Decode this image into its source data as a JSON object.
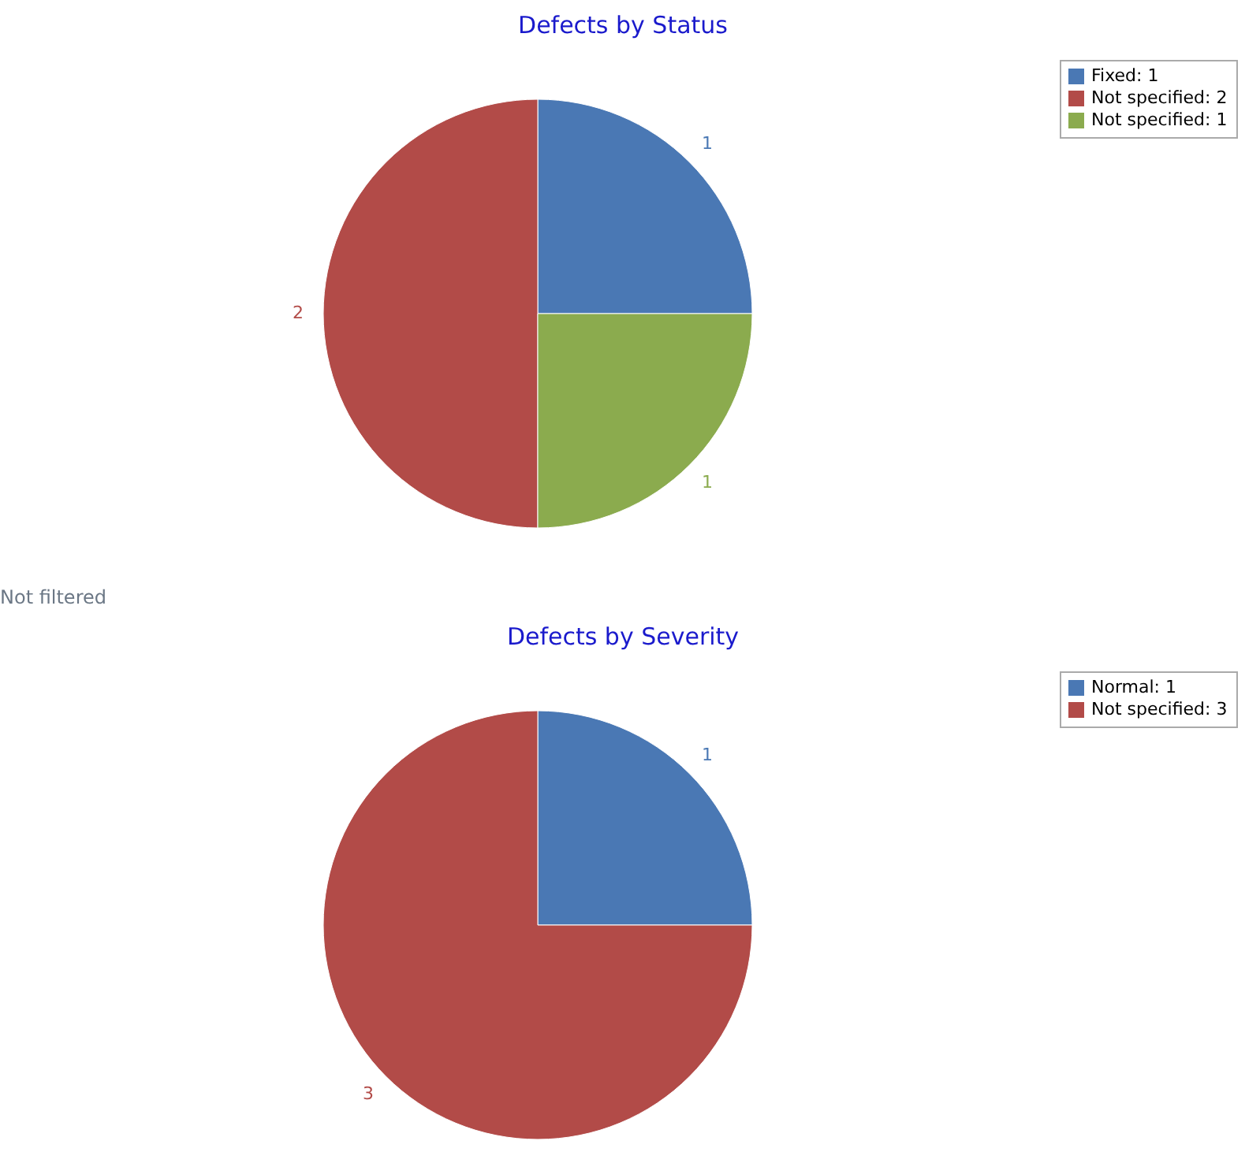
{
  "chart_data": [
    {
      "type": "pie",
      "title": "Defects by Status",
      "categories": [
        "Fixed: 1",
        "Not specified: 2",
        "Not specified: 1"
      ],
      "values": [
        1,
        2,
        1
      ],
      "colors": [
        "#4a78b4",
        "#b24b48",
        "#8bab4e"
      ],
      "data_labels": true,
      "legend": "top right",
      "annotations": [
        "Not filtered"
      ]
    },
    {
      "type": "pie",
      "title": "Defects by Severity",
      "categories": [
        "Normal: 1",
        "Not specified: 3"
      ],
      "values": [
        1,
        3
      ],
      "colors": [
        "#4a78b4",
        "#b24b48"
      ],
      "data_labels": true,
      "legend": "top right"
    }
  ]
}
